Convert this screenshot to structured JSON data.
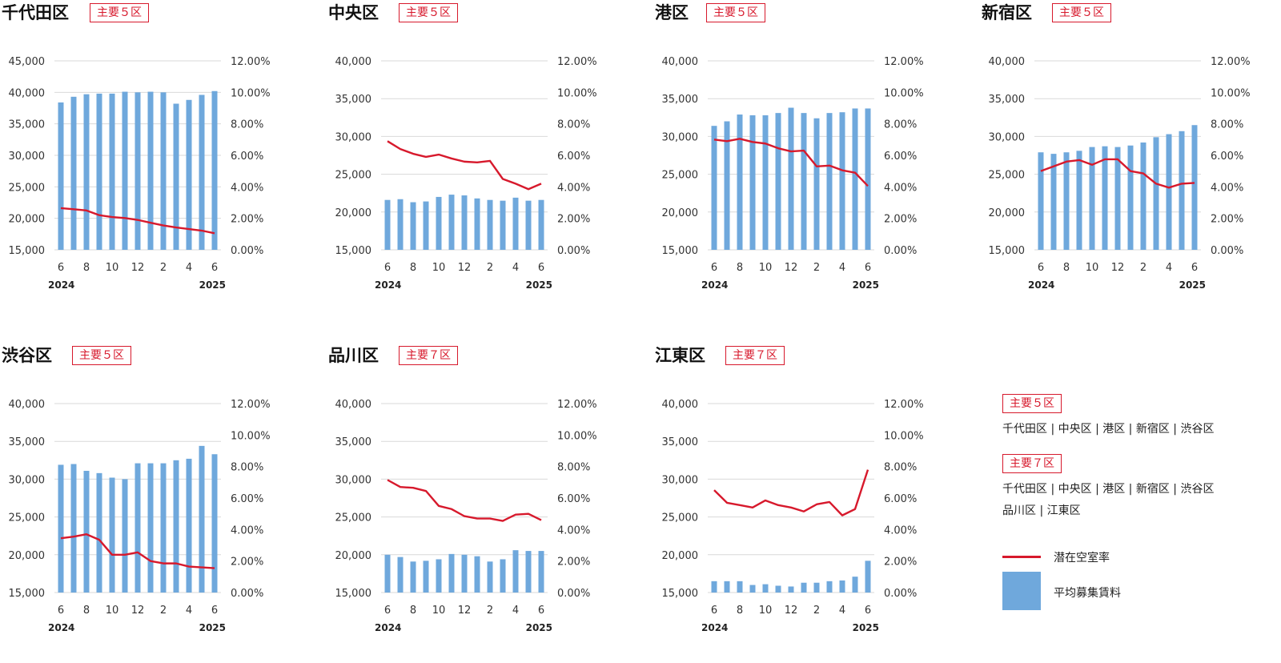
{
  "colors": {
    "bar": "#6fa8dc",
    "line": "#d7192c",
    "grid": "#d9d9d9",
    "badge": "#d7192c"
  },
  "x_tick_labels": [
    "6",
    "8",
    "10",
    "12",
    "2",
    "4",
    "6"
  ],
  "x_year_start": "2024",
  "x_year_end": "2025",
  "legend": {
    "group5_badge": "主要５区",
    "group5_members": "千代田区 | 中央区 | 港区 | 新宿区 | 渋谷区",
    "group7_badge": "主要７区",
    "group7_members_line1": "千代田区 | 中央区 | 港区 | 新宿区 | 渋谷区",
    "group7_members_line2": "品川区 | 江東区",
    "line_label": "潜在空室率",
    "bar_label": "平均募集賃料"
  },
  "chart_data": [
    {
      "type": "bar+line",
      "title": "千代田区",
      "badge": "主要５区",
      "left_ticks": [
        "15,000",
        "20,000",
        "25,000",
        "30,000",
        "35,000",
        "40,000",
        "45,000"
      ],
      "right_ticks": [
        "0.00%",
        "2.00%",
        "4.00%",
        "6.00%",
        "8.00%",
        "10.00%",
        "12.00%"
      ],
      "left_range": [
        15000,
        45000
      ],
      "right_range": [
        0,
        12
      ],
      "rent": [
        38400,
        39300,
        39700,
        39800,
        39800,
        40100,
        40000,
        40100,
        40000,
        38200,
        38800,
        39600,
        40200
      ],
      "vacancy": [
        2.65,
        2.58,
        2.5,
        2.2,
        2.08,
        2.02,
        1.9,
        1.72,
        1.55,
        1.42,
        1.32,
        1.22,
        1.05
      ]
    },
    {
      "type": "bar+line",
      "title": "中央区",
      "badge": "主要５区",
      "left_ticks": [
        "15,000",
        "20,000",
        "25,000",
        "30,000",
        "35,000",
        "40,000"
      ],
      "right_ticks": [
        "0.00%",
        "2.00%",
        "4.00%",
        "6.00%",
        "8.00%",
        "10.00%",
        "12.00%"
      ],
      "left_range": [
        15000,
        40000
      ],
      "right_range": [
        0,
        12
      ],
      "rent": [
        21600,
        21700,
        21300,
        21400,
        22000,
        22300,
        22200,
        21800,
        21600,
        21500,
        21900,
        21500,
        21600
      ],
      "vacancy": [
        6.9,
        6.4,
        6.1,
        5.9,
        6.05,
        5.8,
        5.6,
        5.55,
        5.65,
        4.5,
        4.2,
        3.85,
        4.2
      ]
    },
    {
      "type": "bar+line",
      "title": "港区",
      "badge": "主要５区",
      "left_ticks": [
        "15,000",
        "20,000",
        "25,000",
        "30,000",
        "35,000",
        "40,000"
      ],
      "right_ticks": [
        "0.00%",
        "2.00%",
        "4.00%",
        "6.00%",
        "8.00%",
        "10.00%",
        "12.00%"
      ],
      "left_range": [
        15000,
        40000
      ],
      "right_range": [
        0,
        12
      ],
      "rent": [
        31400,
        32000,
        32900,
        32800,
        32800,
        33100,
        33800,
        33100,
        32400,
        33100,
        33200,
        33700,
        33700
      ],
      "vacancy": [
        7.0,
        6.9,
        7.05,
        6.85,
        6.75,
        6.45,
        6.25,
        6.3,
        5.3,
        5.35,
        5.05,
        4.9,
        4.05
      ]
    },
    {
      "type": "bar+line",
      "title": "新宿区",
      "badge": "主要５区",
      "left_ticks": [
        "15,000",
        "20,000",
        "25,000",
        "30,000",
        "35,000",
        "40,000"
      ],
      "right_ticks": [
        "0.00%",
        "2.00%",
        "4.00%",
        "6.00%",
        "8.00%",
        "10.00%",
        "12.00%"
      ],
      "left_range": [
        15000,
        40000
      ],
      "right_range": [
        0,
        12
      ],
      "rent": [
        27900,
        27700,
        27900,
        28100,
        28600,
        28700,
        28600,
        28800,
        29200,
        29900,
        30300,
        30700,
        31500
      ],
      "vacancy": [
        5.0,
        5.3,
        5.6,
        5.7,
        5.4,
        5.75,
        5.75,
        5.0,
        4.85,
        4.2,
        3.95,
        4.2,
        4.25
      ]
    },
    {
      "type": "bar+line",
      "title": "渋谷区",
      "badge": "主要５区",
      "left_ticks": [
        "15,000",
        "20,000",
        "25,000",
        "30,000",
        "35,000",
        "40,000"
      ],
      "right_ticks": [
        "0.00%",
        "2.00%",
        "4.00%",
        "6.00%",
        "8.00%",
        "10.00%",
        "12.00%"
      ],
      "left_range": [
        15000,
        40000
      ],
      "right_range": [
        0,
        12
      ],
      "rent": [
        31900,
        32000,
        31100,
        30800,
        30200,
        30000,
        32100,
        32100,
        32100,
        32500,
        32700,
        34400,
        33300
      ],
      "vacancy": [
        3.45,
        3.55,
        3.7,
        3.35,
        2.4,
        2.4,
        2.55,
        2.0,
        1.85,
        1.85,
        1.65,
        1.6,
        1.55
      ]
    },
    {
      "type": "bar+line",
      "title": "品川区",
      "badge": "主要７区",
      "left_ticks": [
        "15,000",
        "20,000",
        "25,000",
        "30,000",
        "35,000",
        "40,000"
      ],
      "right_ticks": [
        "0.00%",
        "2.00%",
        "4.00%",
        "6.00%",
        "8.00%",
        "10.00%",
        "12.00%"
      ],
      "left_range": [
        15000,
        40000
      ],
      "right_range": [
        0,
        12
      ],
      "rent": [
        20000,
        19700,
        19100,
        19200,
        19400,
        20100,
        20000,
        19800,
        19100,
        19400,
        20600,
        20500,
        20500
      ],
      "vacancy": [
        7.15,
        6.7,
        6.65,
        6.45,
        5.5,
        5.3,
        4.85,
        4.7,
        4.7,
        4.55,
        4.95,
        5.0,
        4.6
      ]
    },
    {
      "type": "bar+line",
      "title": "江東区",
      "badge": "主要７区",
      "left_ticks": [
        "15,000",
        "20,000",
        "25,000",
        "30,000",
        "35,000",
        "40,000"
      ],
      "right_ticks": [
        "0.00%",
        "2.00%",
        "4.00%",
        "6.00%",
        "8.00%",
        "10.00%",
        "12.00%"
      ],
      "left_range": [
        15000,
        40000
      ],
      "right_range": [
        0,
        12
      ],
      "rent": [
        16500,
        16500,
        16500,
        16000,
        16100,
        15900,
        15800,
        16300,
        16300,
        16500,
        16600,
        17100,
        19200
      ],
      "vacancy": [
        6.5,
        5.7,
        5.55,
        5.4,
        5.85,
        5.55,
        5.4,
        5.15,
        5.6,
        5.75,
        4.9,
        5.3,
        7.8
      ]
    }
  ]
}
